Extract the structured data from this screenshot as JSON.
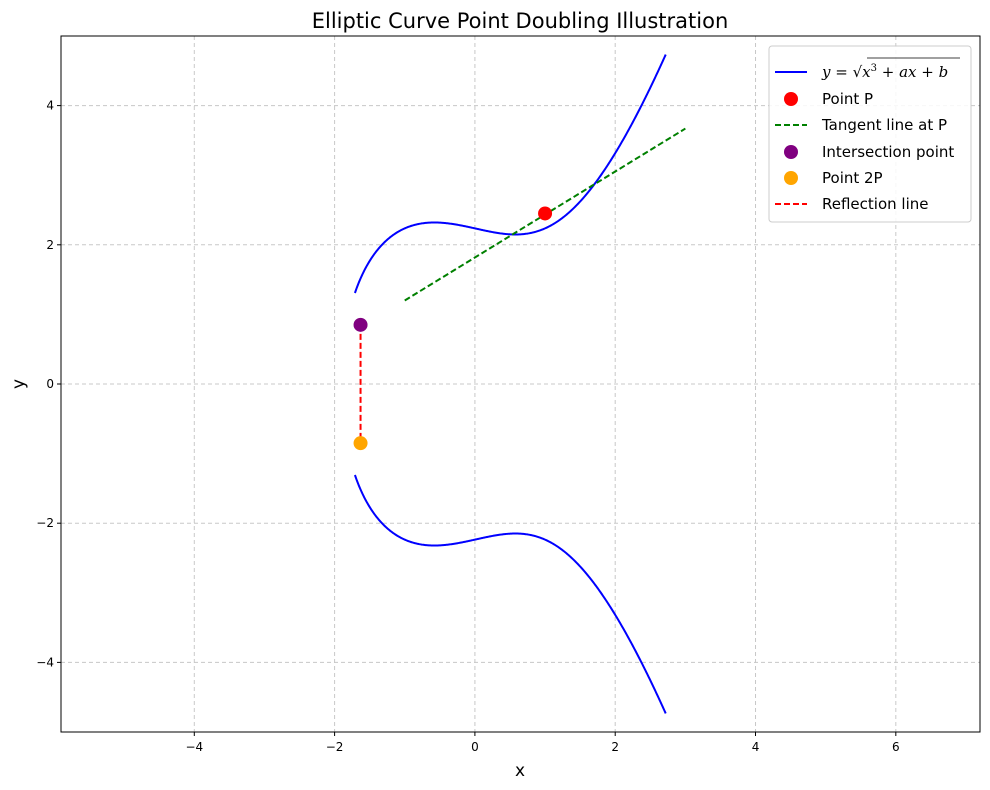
{
  "chart_data": {
    "type": "line",
    "title": "Elliptic Curve Point Doubling Illustration",
    "xlabel": "x",
    "ylabel": "y",
    "xlim": [
      -5.9,
      7.2
    ],
    "ylim": [
      -5,
      5
    ],
    "xticks": [
      -4,
      -2,
      0,
      2,
      4,
      6
    ],
    "yticks": [
      -4,
      -2,
      0,
      2,
      4
    ],
    "xtick_labels": [
      "−4",
      "−2",
      "0",
      "2",
      "4",
      "6"
    ],
    "ytick_labels": [
      "−4",
      "−2",
      "0",
      "2",
      "4"
    ],
    "grid": true,
    "legend_position": "top-right",
    "curve": {
      "a": -1,
      "b": 5,
      "x_range": [
        -1.71,
        2.72
      ]
    },
    "tangent": {
      "x_range": [
        -1,
        3
      ],
      "y_range": [
        1.2,
        3.67
      ]
    },
    "point_P": [
      1,
      2.45
    ],
    "intersection_point": [
      -1.63,
      0.85
    ],
    "point_2P": [
      -1.63,
      -0.85
    ],
    "colors": {
      "curve": "#0000ff",
      "point_P": "#ff0000",
      "tangent": "#008000",
      "intersection": "#800080",
      "point_2P": "#ffa500",
      "reflection": "#ff0000",
      "grid": "#c8c8c8"
    },
    "legend": [
      {
        "kind": "line",
        "label_parts": [
          "y = ",
          "√",
          "x",
          "3",
          " + ax + b"
        ]
      },
      {
        "kind": "marker",
        "label": "Point P"
      },
      {
        "kind": "dashed",
        "label": "Tangent line at P"
      },
      {
        "kind": "marker",
        "label": "Intersection point"
      },
      {
        "kind": "marker",
        "label": "Point 2P"
      },
      {
        "kind": "dashed",
        "label": "Reflection line"
      }
    ]
  }
}
